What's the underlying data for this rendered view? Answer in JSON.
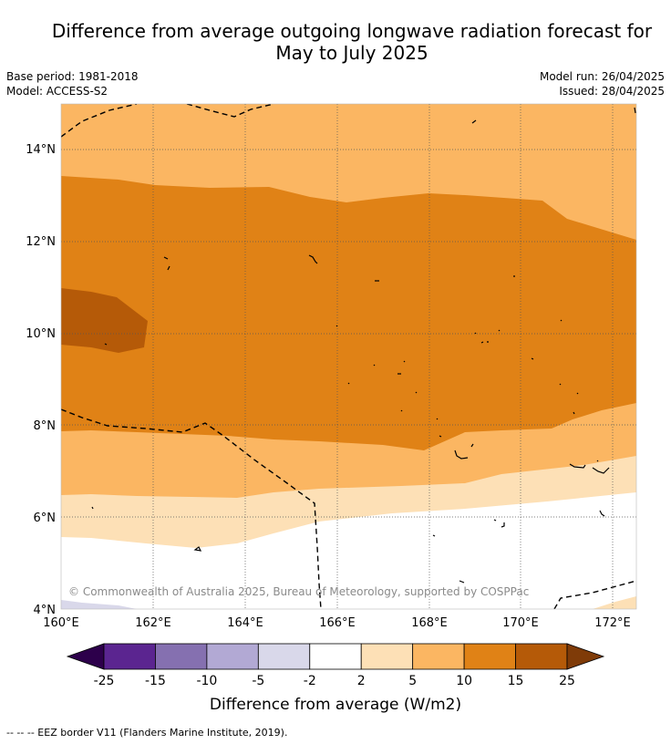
{
  "title": {
    "line1": "Difference from average outgoing longwave radiation forecast for",
    "line2": "May to July 2025"
  },
  "meta_left": {
    "base_period": "Base period: 1981-2018",
    "model": "Model: ACCESS-S2"
  },
  "meta_right": {
    "model_run": "Model run: 26/04/2025",
    "issued": "Issued: 28/04/2025"
  },
  "map": {
    "lon_range": [
      160,
      172.5
    ],
    "lat_range": [
      4,
      15
    ],
    "lon_ticks": [
      "160°E",
      "162°E",
      "164°E",
      "166°E",
      "168°E",
      "170°E",
      "172°E"
    ],
    "lat_ticks": [
      "4°N",
      "6°N",
      "8°N",
      "10°N",
      "12°N",
      "14°N"
    ],
    "grid": true,
    "watermark": "© Commonwealth of Australia 2025, Bureau of Meteorology, supported by COSPPac"
  },
  "colorbar": {
    "ticks": [
      "-25",
      "-15",
      "-10",
      "-5",
      "-2",
      "2",
      "5",
      "10",
      "15",
      "25"
    ],
    "colors": [
      "#5b2590",
      "#8570b0",
      "#b2a9d4",
      "#d9d8ea",
      "#ffffff",
      "#fde0b6",
      "#fbb662",
      "#e08216",
      "#b55a08"
    ],
    "under_color": "#2d004b",
    "over_color": "#7f3b08",
    "label": "Difference from average (W/m2)"
  },
  "footer": {
    "legend": "--  --  -- EEZ border V11 (Flanders Marine Institute, 2019)."
  }
}
